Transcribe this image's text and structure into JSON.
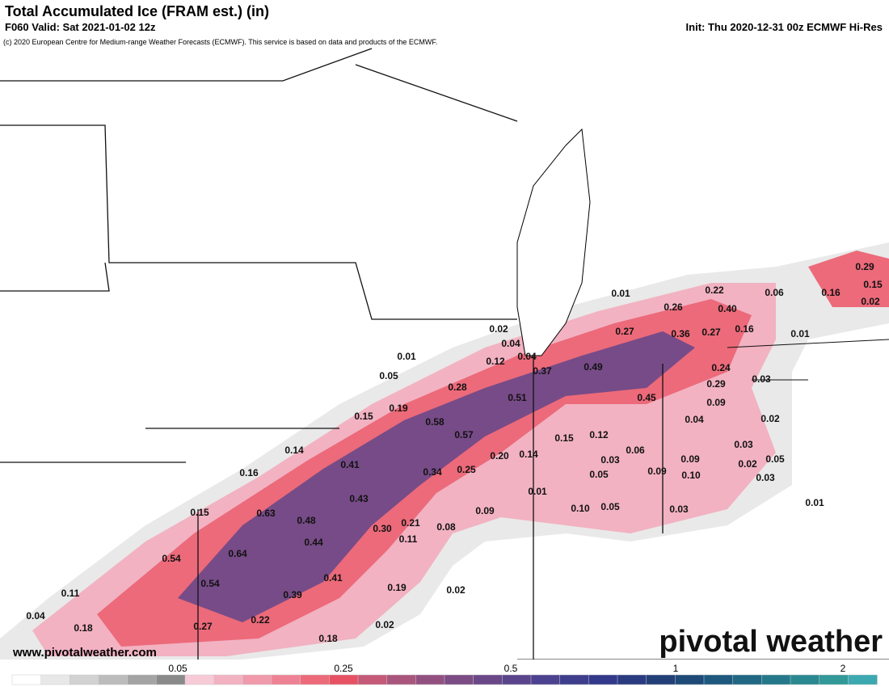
{
  "header": {
    "title": "Total Accumulated Ice (FRAM est.) (in)",
    "valid": "F060 Valid: Sat 2021-01-02 12z",
    "init": "Init: Thu 2020-12-31 00z ECMWF Hi-Res",
    "credit": "(c) 2020 European Centre for Medium-range Weather Forecasts (ECMWF). This service is based on data and products of the ECMWF."
  },
  "map_labels": [
    "0.01",
    "0.22",
    "0.06",
    "0.16",
    "0.29",
    "0.15",
    "0.02",
    "0.26",
    "0.40",
    "0.27",
    "0.36",
    "0.27",
    "0.16",
    "0.01",
    "0.02",
    "0.04",
    "0.04",
    "0.12",
    "0.01",
    "0.05",
    "0.37",
    "0.49",
    "0.24",
    "0.03",
    "0.28",
    "0.29",
    "0.51",
    "0.45",
    "0.09",
    "0.19",
    "0.15",
    "0.58",
    "0.04",
    "0.02",
    "0.57",
    "0.15",
    "0.12",
    "0.03",
    "0.14",
    "0.06",
    "0.20",
    "0.14",
    "0.03",
    "0.09",
    "0.05",
    "0.41",
    "0.02",
    "0.16",
    "0.34",
    "0.25",
    "0.05",
    "0.09",
    "0.10",
    "0.03",
    "0.43",
    "0.01",
    "0.15",
    "0.63",
    "0.10",
    "0.05",
    "0.03",
    "0.01",
    "0.09",
    "0.48",
    "0.21",
    "0.30",
    "0.08",
    "0.44",
    "0.11",
    "0.64",
    "0.54",
    "0.41",
    "0.54",
    "0.19",
    "0.11",
    "0.39",
    "0.02",
    "0.04",
    "0.22",
    "0.27",
    "0.02",
    "0.18",
    "0.18"
  ],
  "website": "www.pivotalweather.com",
  "logo": "pivotal weather",
  "colorbar": {
    "colors": [
      "#ffffff",
      "#e8e8e8",
      "#d2d2d2",
      "#bcbcbc",
      "#a4a4a4",
      "#8a8a8a",
      "#f6cad6",
      "#f2b2c2",
      "#f09aac",
      "#ee8294",
      "#ec6a7a",
      "#e65264",
      "#c45a78",
      "#aa567c",
      "#925080",
      "#7c4c84",
      "#6a4888",
      "#5a458c",
      "#4c4290",
      "#3e3e8c",
      "#32398a",
      "#2a3b80",
      "#223f78",
      "#1e4a78",
      "#1e587e",
      "#206884",
      "#24788a",
      "#2a8890",
      "#329898",
      "#3ca8b0"
    ],
    "ticks": [
      0.05,
      0.25,
      0.5,
      1,
      2
    ]
  }
}
